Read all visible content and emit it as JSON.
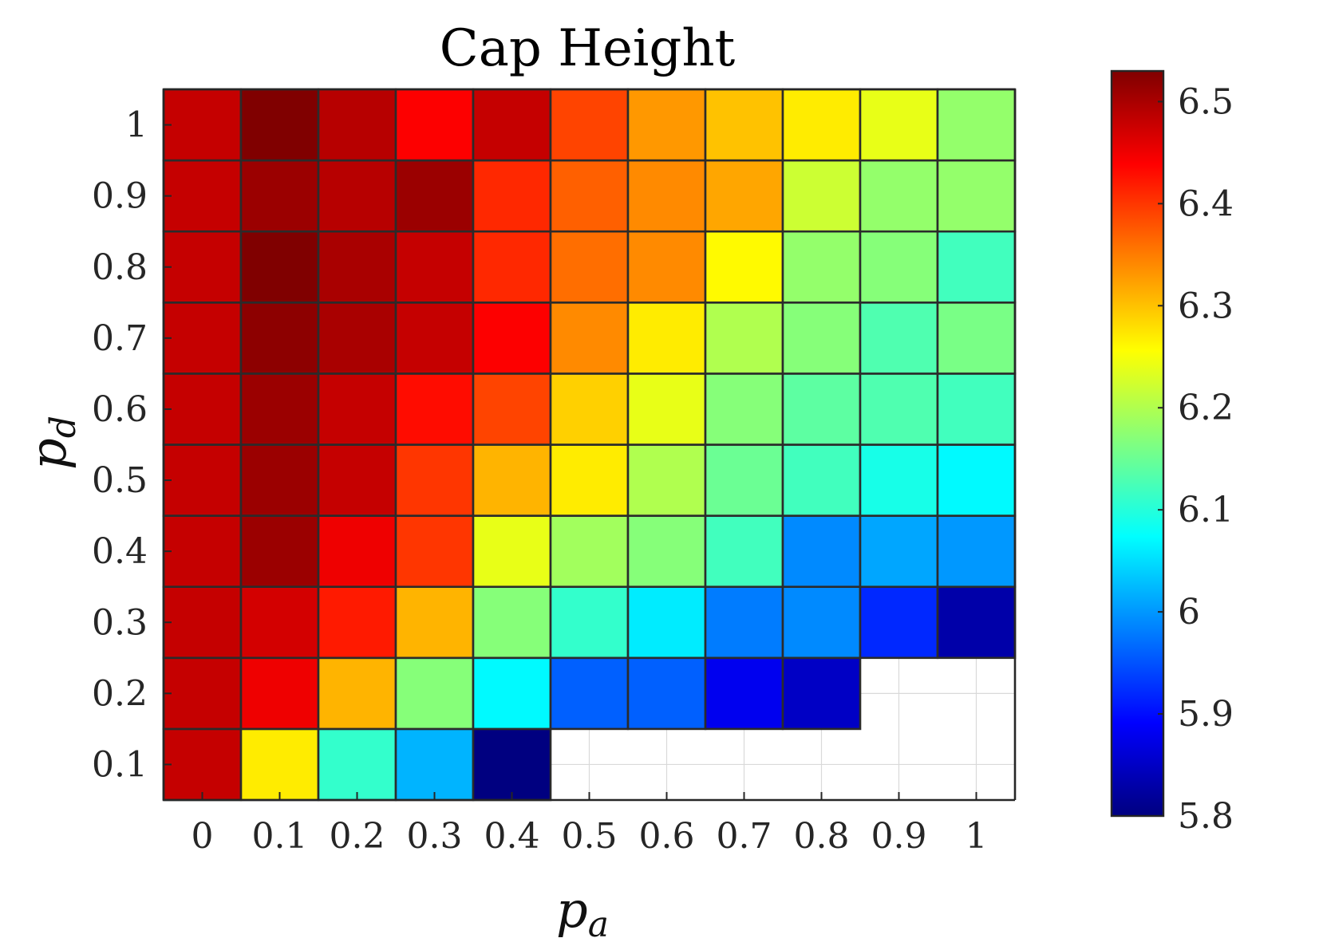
{
  "chart_data": {
    "type": "heatmap",
    "title": "Cap Height",
    "xlabel": "p",
    "xlabel_sub": "a",
    "ylabel": "p",
    "ylabel_sub": "d",
    "x_categories": [
      "0",
      "0.1",
      "0.2",
      "0.3",
      "0.4",
      "0.5",
      "0.6",
      "0.7",
      "0.8",
      "0.9",
      "1"
    ],
    "y_categories": [
      "0.1",
      "0.2",
      "0.3",
      "0.4",
      "0.5",
      "0.6",
      "0.7",
      "0.8",
      "0.9",
      "1"
    ],
    "colormap": "jet",
    "clim": [
      5.8,
      6.53
    ],
    "colorbar_ticks": [
      "5.8",
      "5.9",
      "6",
      "6.1",
      "6.2",
      "6.3",
      "6.4",
      "6.5"
    ],
    "colorbar_tick_values": [
      5.8,
      5.9,
      6.0,
      6.1,
      6.2,
      6.3,
      6.4,
      6.5
    ],
    "grid": true,
    "missing_color": "#ffffff",
    "values": [
      [
        6.48,
        6.27,
        6.11,
        6.02,
        5.8,
        null,
        null,
        null,
        null,
        null,
        null
      ],
      [
        6.48,
        6.45,
        6.31,
        6.17,
        6.07,
        5.96,
        5.96,
        5.88,
        5.85,
        null,
        null
      ],
      [
        6.48,
        6.47,
        6.42,
        6.31,
        6.17,
        6.11,
        6.06,
        5.98,
        5.99,
        5.92,
        5.83
      ],
      [
        6.48,
        6.51,
        6.45,
        6.4,
        6.24,
        6.19,
        6.17,
        6.12,
        5.99,
        6.01,
        6.0
      ],
      [
        6.48,
        6.51,
        6.48,
        6.4,
        6.31,
        6.27,
        6.2,
        6.15,
        6.12,
        6.09,
        6.07
      ],
      [
        6.48,
        6.51,
        6.48,
        6.43,
        6.39,
        6.29,
        6.24,
        6.17,
        6.14,
        6.13,
        6.12
      ],
      [
        6.48,
        6.52,
        6.5,
        6.48,
        6.44,
        6.34,
        6.27,
        6.2,
        6.17,
        6.13,
        6.16
      ],
      [
        6.48,
        6.53,
        6.5,
        6.48,
        6.41,
        6.36,
        6.34,
        6.26,
        6.18,
        6.17,
        6.12
      ],
      [
        6.48,
        6.51,
        6.49,
        6.51,
        6.41,
        6.37,
        6.34,
        6.32,
        6.22,
        6.18,
        6.18
      ],
      [
        6.48,
        6.53,
        6.49,
        6.44,
        6.48,
        6.39,
        6.33,
        6.3,
        6.27,
        6.24,
        6.18
      ]
    ]
  }
}
